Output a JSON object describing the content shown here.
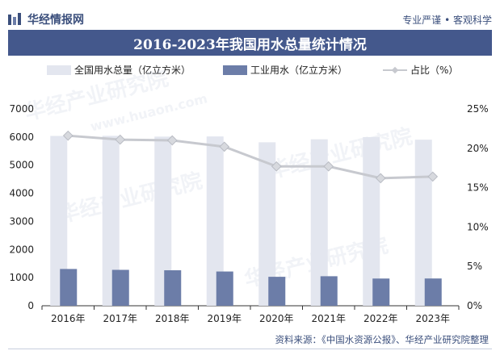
{
  "header": {
    "logo_text": "华经情报网",
    "tagline": "专业严谨 • 客观科学"
  },
  "chart_data": {
    "type": "bar",
    "title": "2016-2023年我国用水总量统计情况",
    "categories": [
      "2016年",
      "2017年",
      "2018年",
      "2019年",
      "2020年",
      "2021年",
      "2022年",
      "2023年"
    ],
    "series": [
      {
        "name": "全国用水总量（亿立方米）",
        "values": [
          6040,
          6043,
          6016,
          6021,
          5813,
          5920,
          5998,
          5906
        ],
        "axis": "left",
        "color": "#e3e6ef"
      },
      {
        "name": "工业用水（亿立方米）",
        "values": [
          1308,
          1277,
          1262,
          1218,
          1030,
          1050,
          968,
          970
        ],
        "axis": "left",
        "color": "#6c7da8"
      },
      {
        "name": "占比（%）",
        "type": "line",
        "values": [
          21.6,
          21.1,
          21.0,
          20.2,
          17.7,
          17.7,
          16.2,
          16.4
        ],
        "axis": "right",
        "color": "#c7c9cf"
      }
    ],
    "ylim_left": [
      0,
      7000
    ],
    "yticks_left": [
      "0",
      "1000",
      "2000",
      "3000",
      "4000",
      "5000",
      "6000",
      "7000"
    ],
    "ylim_right": [
      0,
      25
    ],
    "yticks_right": [
      "0%",
      "5%",
      "10%",
      "15%",
      "20%",
      "25%"
    ],
    "grid": false,
    "legend_position": "top"
  },
  "source": "资料来源：《中国水资源公报》、华经产业研究院整理",
  "watermarks": [
    "华经产业研究院",
    "华经产业研究院",
    "华经产业研究院",
    "华经产业研究院",
    "www.huaon.com"
  ]
}
